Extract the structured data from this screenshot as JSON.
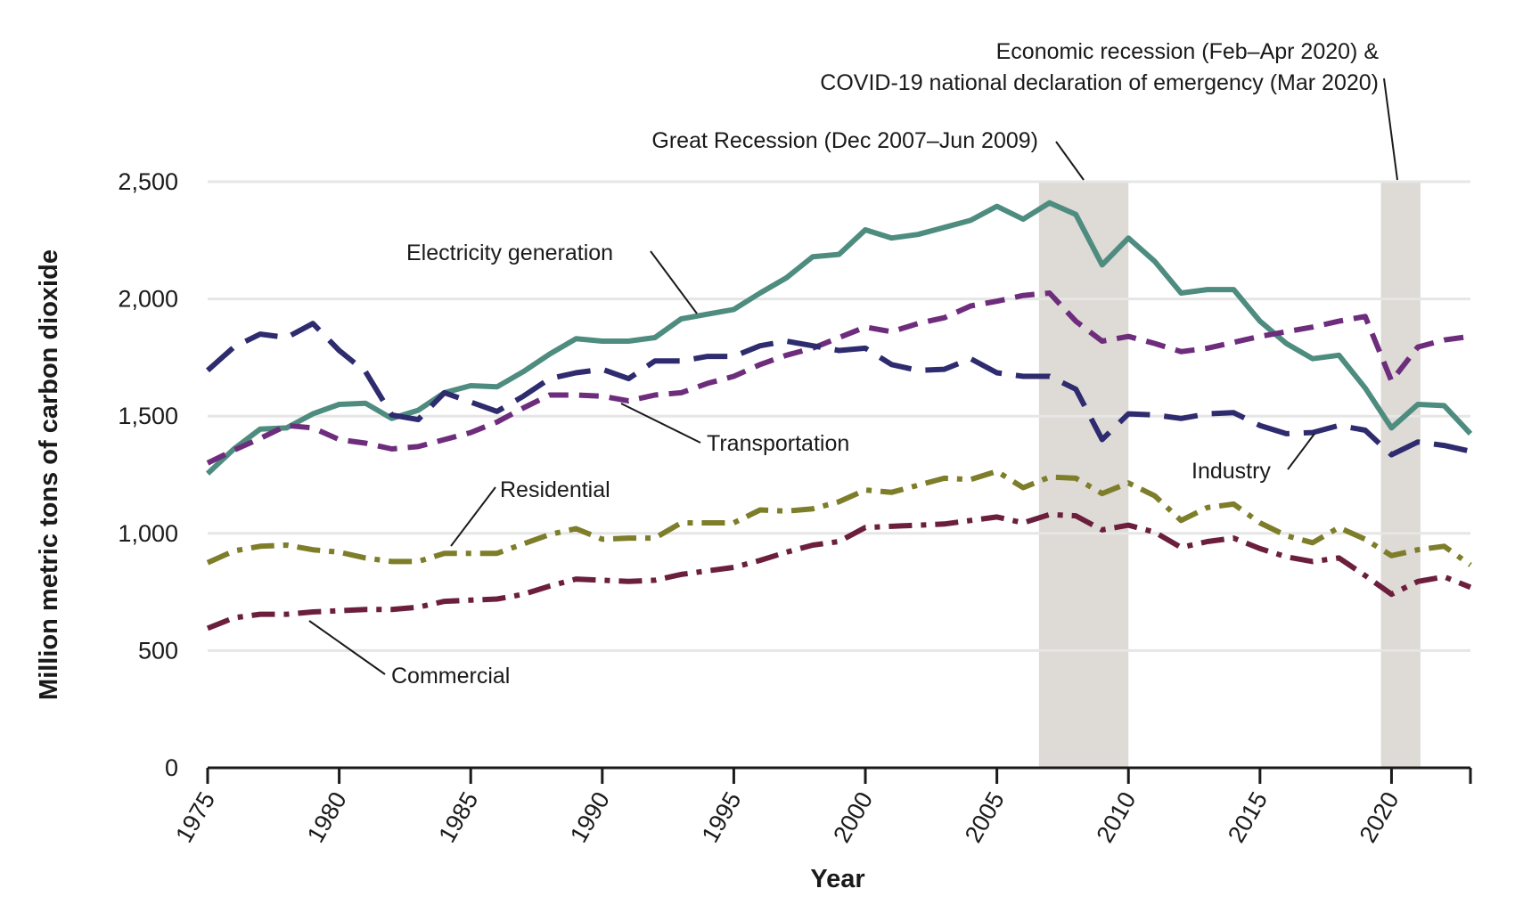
{
  "chart_data": {
    "type": "line",
    "title": "",
    "xlabel": "Year",
    "ylabel": "Million metric tons of carbon dioxide",
    "xlim": [
      1975,
      2023
    ],
    "ylim": [
      0,
      2500
    ],
    "x_ticks": [
      1975,
      1980,
      1985,
      1990,
      1995,
      2000,
      2005,
      2010,
      2015,
      2020
    ],
    "y_ticks": [
      0,
      500,
      1000,
      1500,
      2000,
      2500
    ],
    "y_tick_labels": [
      "0",
      "500",
      "1,000",
      "1,500",
      "2,000",
      "2,500"
    ],
    "grid": "horizontal",
    "legend": "none (direct labels)",
    "x": [
      1975,
      1976,
      1977,
      1978,
      1979,
      1980,
      1981,
      1982,
      1983,
      1984,
      1985,
      1986,
      1987,
      1988,
      1989,
      1990,
      1991,
      1992,
      1993,
      1994,
      1995,
      1996,
      1997,
      1998,
      1999,
      2000,
      2001,
      2002,
      2003,
      2004,
      2005,
      2006,
      2007,
      2008,
      2009,
      2010,
      2011,
      2012,
      2013,
      2014,
      2015,
      2016,
      2017,
      2018,
      2019,
      2020,
      2021,
      2022,
      2023
    ],
    "series": [
      {
        "name": "Electricity generation",
        "color": "#4e8c80",
        "dash": "solid",
        "values": [
          1255,
          1360,
          1445,
          1450,
          1510,
          1550,
          1555,
          1490,
          1525,
          1600,
          1630,
          1625,
          1690,
          1765,
          1830,
          1820,
          1820,
          1835,
          1915,
          1935,
          1955,
          2025,
          2090,
          2180,
          2190,
          2295,
          2260,
          2275,
          2305,
          2335,
          2395,
          2340,
          2410,
          2360,
          2145,
          2260,
          2160,
          2025,
          2040,
          2040,
          1905,
          1810,
          1745,
          1760,
          1620,
          1450,
          1550,
          1545,
          1425
        ]
      },
      {
        "name": "Transportation",
        "color": "#6e2d7c",
        "dash": "dashed",
        "values": [
          1300,
          1355,
          1405,
          1460,
          1450,
          1400,
          1385,
          1360,
          1370,
          1400,
          1430,
          1475,
          1535,
          1590,
          1590,
          1585,
          1565,
          1590,
          1600,
          1640,
          1670,
          1720,
          1760,
          1790,
          1835,
          1880,
          1860,
          1895,
          1920,
          1970,
          1990,
          2015,
          2025,
          1905,
          1820,
          1840,
          1810,
          1775,
          1790,
          1815,
          1840,
          1860,
          1880,
          1905,
          1925,
          1650,
          1795,
          1825,
          1840
        ]
      },
      {
        "name": "Industry",
        "color": "#2e2b6e",
        "dash": "long-dash",
        "values": [
          1695,
          1795,
          1850,
          1835,
          1895,
          1780,
          1690,
          1505,
          1485,
          1600,
          1560,
          1520,
          1585,
          1660,
          1685,
          1700,
          1660,
          1735,
          1735,
          1755,
          1755,
          1800,
          1820,
          1800,
          1780,
          1790,
          1720,
          1695,
          1700,
          1745,
          1685,
          1670,
          1670,
          1615,
          1400,
          1510,
          1505,
          1490,
          1510,
          1515,
          1460,
          1425,
          1430,
          1460,
          1440,
          1335,
          1390,
          1375,
          1350
        ]
      },
      {
        "name": "Residential",
        "color": "#7d7d2a",
        "dash": "dash-dot",
        "values": [
          875,
          925,
          945,
          950,
          930,
          920,
          895,
          880,
          880,
          915,
          915,
          915,
          955,
          995,
          1020,
          975,
          980,
          980,
          1045,
          1045,
          1045,
          1100,
          1095,
          1105,
          1135,
          1185,
          1175,
          1205,
          1235,
          1230,
          1265,
          1195,
          1240,
          1235,
          1170,
          1215,
          1160,
          1055,
          1110,
          1125,
          1045,
          990,
          960,
          1025,
          975,
          905,
          930,
          945,
          865
        ]
      },
      {
        "name": "Commercial",
        "color": "#6b1f3d",
        "dash": "dash-dot",
        "values": [
          595,
          640,
          655,
          655,
          665,
          670,
          675,
          675,
          685,
          710,
          715,
          720,
          740,
          775,
          805,
          800,
          795,
          800,
          825,
          840,
          855,
          885,
          920,
          950,
          965,
          1025,
          1030,
          1035,
          1040,
          1055,
          1070,
          1045,
          1080,
          1075,
          1015,
          1035,
          1005,
          940,
          965,
          980,
          935,
          900,
          880,
          895,
          820,
          740,
          795,
          815,
          770
        ]
      }
    ],
    "series_labels": [
      {
        "name": "Electricity generation",
        "text": "Electricity generation"
      },
      {
        "name": "Transportation",
        "text": "Transportation"
      },
      {
        "name": "Industry",
        "text": "Industry"
      },
      {
        "name": "Residential",
        "text": "Residential"
      },
      {
        "name": "Commercial",
        "text": "Commercial"
      }
    ],
    "recession_periods": [
      {
        "label": "Great Recession (Dec 2007–Jun 2009)",
        "start": 2006.6,
        "end": 2010.0
      },
      {
        "label_lines": [
          "Economic recession (Feb–Apr 2020) &",
          "COVID-19 national declaration of emergency (Mar 2020)"
        ],
        "start": 2019.6,
        "end": 2021.1
      }
    ],
    "shading_color": "#dedad5",
    "grid_color": "#e6e6e6"
  }
}
